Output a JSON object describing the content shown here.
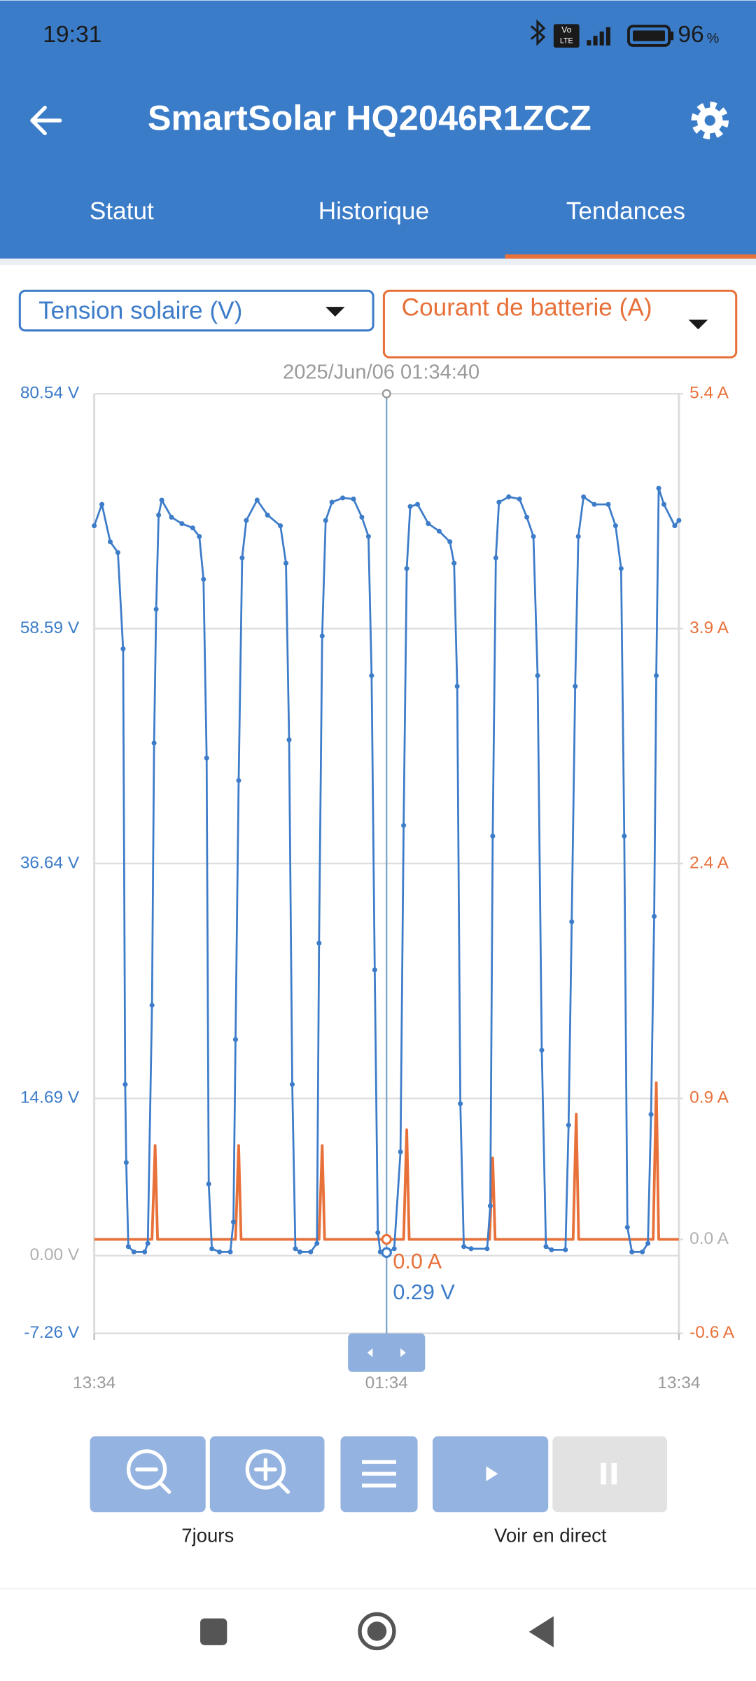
{
  "status": {
    "time": "19:31",
    "network": [
      "Vo",
      "LTE"
    ],
    "battery": "96",
    "battery_unit": "%"
  },
  "header": {
    "title": "SmartSolar HQ2046R1ZCZ",
    "tabs": [
      "Statut",
      "Historique",
      "Tendances"
    ],
    "active_tab": 2
  },
  "controls": {
    "zoom_label": "7jours",
    "live_label": "Voir en direct"
  },
  "chart_data": {
    "type": "line",
    "series": [
      {
        "name": "Tension solaire (V)",
        "color": "#3d7cc9",
        "markers": true,
        "x": [
          0,
          2.2,
          4.6,
          6.8,
          8.3,
          8.9,
          9.2,
          9.8,
          11.4,
          14.5,
          15.4,
          16.6,
          17.2,
          17.8,
          18.5,
          19.4,
          22.2,
          25.2,
          28.3,
          30.2,
          31.4,
          32.3,
          32.9,
          33.8,
          36,
          39.1,
          40,
          40.6,
          41.5,
          42.5,
          43.7,
          46.8,
          49.8,
          53.5,
          55.1,
          56,
          56.9,
          57.8,
          59.1,
          62.2,
          64,
          64.6,
          65.5,
          66.5,
          68.3,
          71.4,
          74.5,
          76.9,
          78.8,
          79.7,
          80.6,
          81.5,
          82.2,
          84,
          86.2,
          88,
          88.9,
          89.8,
          90.8,
          92.9,
          96,
          99.1,
          102.2,
          103.4,
          104.3,
          105.2,
          106.2,
          108.3,
          112.9,
          113.8,
          114.5,
          115.4,
          116.3,
          119.1,
          122.2,
          124.3,
          126.2,
          127.4,
          128.6,
          129.8,
          131.4,
          135.4,
          136.3,
          137.2,
          138.2,
          139.1,
          140.6,
          143.7,
          147.7,
          149.8,
          151.4,
          152.3,
          153.2,
          154.5,
          157.5,
          159.1,
          160,
          160.9,
          161.5,
          162.2,
          163.7,
          166.8,
          168
        ],
        "values": [
          68.2,
          70.2,
          66.7,
          65.7,
          56.7,
          16,
          8.7,
          0.85,
          0.35,
          0.35,
          1.15,
          23.4,
          47.9,
          60.4,
          69.2,
          70.6,
          69,
          68.4,
          68,
          67.2,
          63.2,
          46.5,
          6.7,
          0.65,
          0.35,
          0.35,
          3.15,
          20.2,
          44.4,
          65.2,
          68.7,
          70.6,
          69.2,
          68.2,
          64.7,
          48.2,
          16,
          0.65,
          0.35,
          0.35,
          1.15,
          29.2,
          57.9,
          68.7,
          70.4,
          70.8,
          70.7,
          69,
          67.2,
          54.2,
          26.7,
          2.15,
          0.35,
          0.29,
          0.65,
          9.7,
          40.2,
          64.2,
          70,
          70.2,
          68.4,
          67.7,
          66.7,
          64.7,
          53.2,
          14.2,
          0.85,
          0.65,
          0.65,
          4.65,
          39.2,
          65.2,
          70.4,
          70.9,
          70.7,
          69,
          67.2,
          54.2,
          19.2,
          0.85,
          0.55,
          0.55,
          12.2,
          31.2,
          53.2,
          67.2,
          70.9,
          70.2,
          70.2,
          68.2,
          64.2,
          39.2,
          2.65,
          0.35,
          0.35,
          1.15,
          13.2,
          31.7,
          54.2,
          71.7,
          70.2,
          68.2,
          68.7
        ]
      },
      {
        "name": "Courant de batterie (A)",
        "color": "#e8713a",
        "axis": "y2",
        "markers": false,
        "x": [
          0,
          16.6,
          17.5,
          18.2,
          40.6,
          41.5,
          42.2,
          64.6,
          65.5,
          66.2,
          88.9,
          89.8,
          90.5,
          113.6,
          114.5,
          115.2,
          137.6,
          138.5,
          139.2,
          160.6,
          161.5,
          162.2,
          168
        ],
        "values": [
          0,
          0,
          0.6,
          0,
          0,
          0.6,
          0,
          0,
          0.6,
          0,
          0,
          0.7,
          0,
          0,
          0.52,
          0,
          0,
          0.8,
          0,
          0,
          1.0,
          0,
          0
        ]
      }
    ],
    "xlim": [
      0,
      168
    ],
    "xticks": [
      {
        "value": 0,
        "label": "13:34"
      },
      {
        "value": 84,
        "label": "01:34"
      },
      {
        "value": 168,
        "label": "13:34"
      }
    ],
    "ylim": [
      -7.26,
      80.54
    ],
    "yticks": [
      {
        "value": -7.26,
        "label": "-7.26 V"
      },
      {
        "value": 0,
        "label": "0.00 V"
      },
      {
        "value": 14.69,
        "label": "14.69 V"
      },
      {
        "value": 36.64,
        "label": "36.64 V"
      },
      {
        "value": 58.59,
        "label": "58.59 V"
      },
      {
        "value": 80.54,
        "label": "80.54 V"
      }
    ],
    "y2lim": [
      -0.6,
      5.4
    ],
    "y2ticks": [
      {
        "value": -0.6,
        "label": "-0.6 A"
      },
      {
        "value": 0,
        "label": "0.0 A"
      },
      {
        "value": 0.9,
        "label": "0.9 A"
      },
      {
        "value": 2.4,
        "label": "2.4 A"
      },
      {
        "value": 3.9,
        "label": "3.9 A"
      },
      {
        "value": 5.4,
        "label": "5.4 A"
      }
    ],
    "zero_label_color": "#b0b0b0",
    "grid": true,
    "cursor": {
      "x": 84,
      "label": "2025/Jun/06 01:34:40",
      "values": [
        0.29,
        0.0
      ],
      "value_labels": [
        "0.29 V",
        "0.0 A"
      ]
    }
  }
}
